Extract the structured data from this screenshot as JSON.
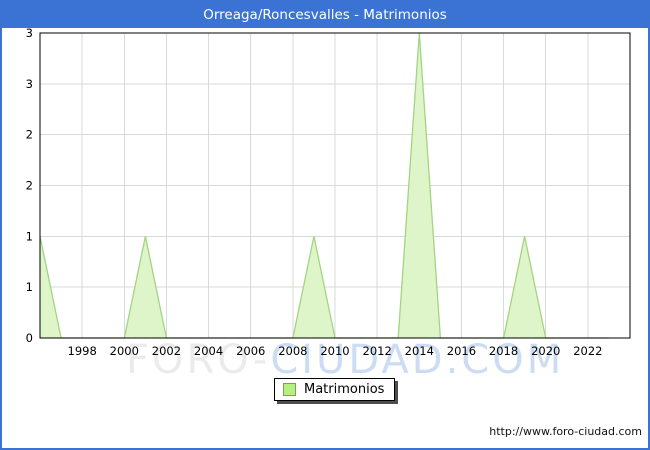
{
  "title": "Orreaga/Roncesvalles - Matrimonios",
  "colors": {
    "titlebar_bg": "#3b73d4",
    "window_border": "#3b73d4",
    "area_fill": "#def5c9",
    "area_stroke": "#a3d483",
    "legend_swatch_fill": "#b4ef80",
    "legend_swatch_border": "#7da055",
    "grid": "#d9d9d9",
    "plot_border": "#000000",
    "tick_text": "#000000",
    "watermark_gray": "#ebebeb",
    "watermark_blue": "#ccdcf4"
  },
  "chart_data": {
    "type": "area",
    "title": "Orreaga/Roncesvalles - Matrimonios",
    "series_name": "Matrimonios",
    "x": [
      1996,
      1997,
      1998,
      1999,
      2000,
      2001,
      2002,
      2003,
      2004,
      2005,
      2006,
      2007,
      2008,
      2009,
      2010,
      2011,
      2012,
      2013,
      2014,
      2015,
      2016,
      2017,
      2018,
      2019,
      2020,
      2021,
      2022,
      2023
    ],
    "values": [
      1,
      0,
      0,
      0,
      0,
      1,
      0,
      0,
      0,
      0,
      0,
      0,
      0,
      1,
      0,
      0,
      0,
      0,
      3,
      0,
      0,
      0,
      0,
      1,
      0,
      0,
      0,
      0
    ],
    "xlim": [
      1996,
      2024
    ],
    "ylim": [
      0,
      3
    ],
    "x_ticks": [
      1998,
      2000,
      2002,
      2004,
      2006,
      2008,
      2010,
      2012,
      2014,
      2016,
      2018,
      2020,
      2022
    ],
    "y_ticks": [
      {
        "value": 3,
        "label": "3"
      },
      {
        "value": 2.5,
        "label": "3"
      },
      {
        "value": 2,
        "label": "2"
      },
      {
        "value": 1.5,
        "label": "2"
      },
      {
        "value": 1,
        "label": "1"
      },
      {
        "value": 0.5,
        "label": "1"
      },
      {
        "value": 0,
        "label": "0"
      }
    ],
    "grid": true,
    "legend_position": "bottom"
  },
  "legend": {
    "label": "Matrimonios"
  },
  "watermark": {
    "part1": "FORO-",
    "part2": "CIUDAD.COM"
  },
  "footer": {
    "url": "http://www.foro-ciudad.com"
  }
}
